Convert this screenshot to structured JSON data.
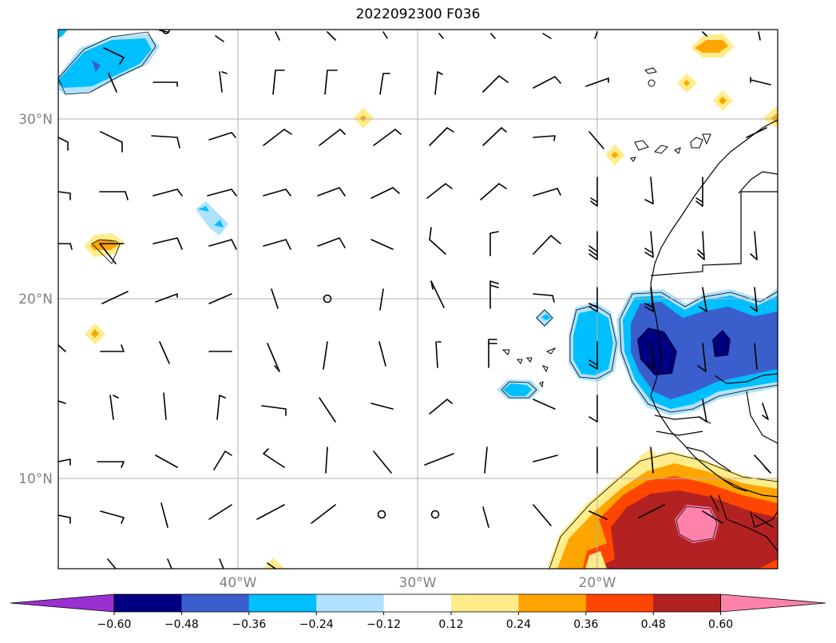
{
  "title": "2022092300 F036",
  "latitude_labels": [
    "30°N",
    "20°N",
    "10°N"
  ],
  "longitude_labels": [
    "40°W",
    "30°W",
    "20°W"
  ],
  "colorbar": {
    "tick_labels": [
      "−0.60",
      "−0.48",
      "−0.36",
      "−0.24",
      "−0.12",
      "0.12",
      "0.24",
      "0.36",
      "0.48",
      "0.60"
    ],
    "colors": [
      "#9b30d0",
      "#000080",
      "#3a5fcd",
      "#00bfff",
      "#b0e2ff",
      "#ffffff",
      "#ffec8b",
      "#ffa500",
      "#ff4500",
      "#b22222",
      "#ff82ab"
    ]
  }
}
